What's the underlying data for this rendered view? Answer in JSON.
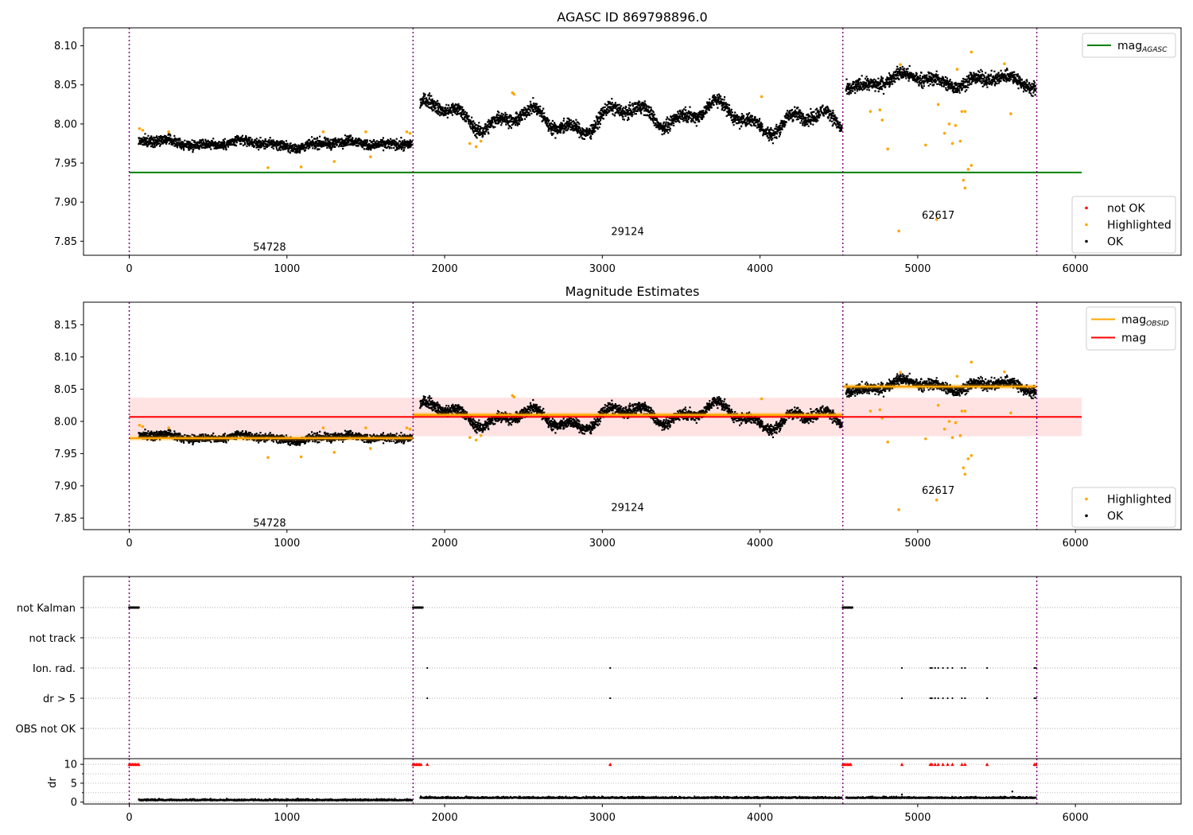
{
  "figure": {
    "title_top": "AGASC ID 869798896.0",
    "title_middle": "Magnitude Estimates"
  },
  "chart_data": [
    {
      "type": "scatter",
      "id": "top",
      "title": "AGASC ID 869798896.0",
      "xlim": [
        -290,
        6670
      ],
      "ylim": [
        7.832,
        8.123
      ],
      "xticks": [
        0,
        1000,
        2000,
        3000,
        4000,
        5000,
        6000
      ],
      "yticks": [
        7.85,
        7.9,
        7.95,
        8.0,
        8.05,
        8.1
      ],
      "obsid_boundaries": [
        0,
        1800,
        4525,
        5755
      ],
      "obsid_labels": [
        {
          "text": "54728",
          "x": 890,
          "y": 7.843
        },
        {
          "text": "29124",
          "x": 3160,
          "y": 7.863
        },
        {
          "text": "62617",
          "x": 5130,
          "y": 7.884
        }
      ],
      "lines": [
        {
          "name": "mag_AGASC",
          "y": 7.938,
          "x_range": [
            0,
            6040
          ],
          "color": "#008000"
        }
      ],
      "segments": [
        {
          "x_start": 60,
          "x_end": 1795,
          "base": 7.975,
          "noise": 0.006,
          "wave": 0.003
        },
        {
          "x_start": 1845,
          "x_end": 4520,
          "base": 8.008,
          "noise": 0.008,
          "wave": 0.012
        },
        {
          "x_start": 4545,
          "x_end": 5750,
          "base": 8.054,
          "noise": 0.008,
          "wave": 0.006
        }
      ],
      "highlighted_points": [
        [
          65,
          7.994
        ],
        [
          85,
          7.992
        ],
        [
          250,
          7.99
        ],
        [
          880,
          7.944
        ],
        [
          1090,
          7.945
        ],
        [
          1230,
          7.99
        ],
        [
          1300,
          7.952
        ],
        [
          1500,
          7.99
        ],
        [
          1530,
          7.958
        ],
        [
          1760,
          7.99
        ],
        [
          1780,
          7.988
        ],
        [
          2160,
          7.975
        ],
        [
          2200,
          7.971
        ],
        [
          2230,
          7.978
        ],
        [
          2430,
          8.04
        ],
        [
          2440,
          8.038
        ],
        [
          4010,
          8.035
        ],
        [
          4700,
          8.016
        ],
        [
          4760,
          8.018
        ],
        [
          4775,
          8.005
        ],
        [
          4810,
          7.968
        ],
        [
          4880,
          7.863
        ],
        [
          4890,
          8.076
        ],
        [
          5050,
          7.973
        ],
        [
          5120,
          7.878
        ],
        [
          5130,
          8.025
        ],
        [
          5170,
          7.988
        ],
        [
          5200,
          8.0
        ],
        [
          5220,
          7.975
        ],
        [
          5240,
          7.998
        ],
        [
          5270,
          7.978
        ],
        [
          5290,
          7.928
        ],
        [
          5300,
          7.918
        ],
        [
          5280,
          8.016
        ],
        [
          5300,
          8.016
        ],
        [
          5320,
          7.942
        ],
        [
          5340,
          7.947
        ],
        [
          5340,
          8.092
        ],
        [
          5550,
          8.077
        ],
        [
          5590,
          8.013
        ],
        [
          5250,
          8.07
        ]
      ],
      "legend_upper": [
        {
          "label": "mag",
          "sub": "AGASC",
          "color": "#008000",
          "kind": "line"
        }
      ],
      "legend_lower": [
        {
          "label": "not OK",
          "color": "#ff0000",
          "kind": "dot"
        },
        {
          "label": "Highlighted",
          "color": "#ffa500",
          "kind": "dot"
        },
        {
          "label": "OK",
          "color": "#000000",
          "kind": "dot"
        }
      ]
    },
    {
      "type": "scatter",
      "id": "middle",
      "title": "Magnitude Estimates",
      "xlim": [
        -290,
        6670
      ],
      "ylim": [
        7.832,
        8.185
      ],
      "xticks": [
        0,
        1000,
        2000,
        3000,
        4000,
        5000,
        6000
      ],
      "yticks": [
        7.85,
        7.9,
        7.95,
        8.0,
        8.05,
        8.1,
        8.15
      ],
      "obsid_boundaries": [
        0,
        1800,
        4525,
        5755
      ],
      "obsid_labels": [
        {
          "text": "54728",
          "x": 890,
          "y": 7.843
        },
        {
          "text": "29124",
          "x": 3160,
          "y": 7.867
        },
        {
          "text": "62617",
          "x": 5130,
          "y": 7.894
        }
      ],
      "mag_line": {
        "y": 8.007,
        "x_range": [
          0,
          6040
        ],
        "color": "#ff0000",
        "band": [
          7.977,
          8.037
        ]
      },
      "obsid_mags": [
        {
          "x_range": [
            0,
            1800
          ],
          "y": 7.974
        },
        {
          "x_range": [
            1800,
            4525
          ],
          "y": 8.01
        },
        {
          "x_range": [
            4525,
            5755
          ],
          "y": 8.054
        }
      ],
      "legend_upper": [
        {
          "label": "mag",
          "sub": "OBSID",
          "color": "#ffa500",
          "kind": "line"
        },
        {
          "label": "mag",
          "sub": "",
          "color": "#ff0000",
          "kind": "line"
        }
      ],
      "legend_lower": [
        {
          "label": "Highlighted",
          "color": "#ffa500",
          "kind": "dot"
        },
        {
          "label": "OK",
          "color": "#000000",
          "kind": "dot"
        }
      ]
    },
    {
      "type": "scatter",
      "id": "flags",
      "xlim": [
        -290,
        6670
      ],
      "categories": [
        "not Kalman",
        "not track",
        "Ion. rad.",
        "dr > 5",
        "OBS not OK"
      ],
      "flag_points": {
        "not Kalman": [
          [
            0,
            60
          ],
          [
            1800,
            1860
          ],
          [
            4525,
            4585
          ]
        ],
        "Ion. rad.": [
          1890,
          3050,
          4900,
          5080,
          5090,
          5110,
          5130,
          5160,
          5190,
          5220,
          5280,
          5300,
          5440,
          5740,
          5750
        ],
        "dr > 5": [
          1890,
          3050,
          4900,
          5080,
          5090,
          5110,
          5130,
          5160,
          5190,
          5220,
          5280,
          5300,
          5440,
          5740,
          5750
        ]
      }
    },
    {
      "type": "scatter",
      "id": "dr",
      "ylabel": "dr",
      "xlim": [
        -290,
        6670
      ],
      "ylim": [
        -0.5,
        11.5
      ],
      "yticks": [
        0,
        5,
        10
      ],
      "xticks": [
        0,
        1000,
        2000,
        3000,
        4000,
        5000,
        6000
      ],
      "dr_clipped_x": [
        0,
        10,
        20,
        30,
        40,
        50,
        60,
        1800,
        1810,
        1820,
        1830,
        1840,
        1850,
        1890,
        3050,
        4525,
        4535,
        4545,
        4555,
        4565,
        4575,
        4900,
        5080,
        5090,
        5110,
        5130,
        5160,
        5190,
        5220,
        5280,
        5300,
        5440,
        5740,
        5750
      ],
      "dr_outliers": [
        [
          4900,
          2.0
        ],
        [
          5600,
          2.8
        ]
      ]
    }
  ],
  "colors": {
    "ok": "#000000",
    "highlighted": "#ffa500",
    "not_ok": "#ff0000",
    "agasc": "#008000",
    "obsid_boundary": "#800080",
    "band": "#ffdcdc"
  }
}
